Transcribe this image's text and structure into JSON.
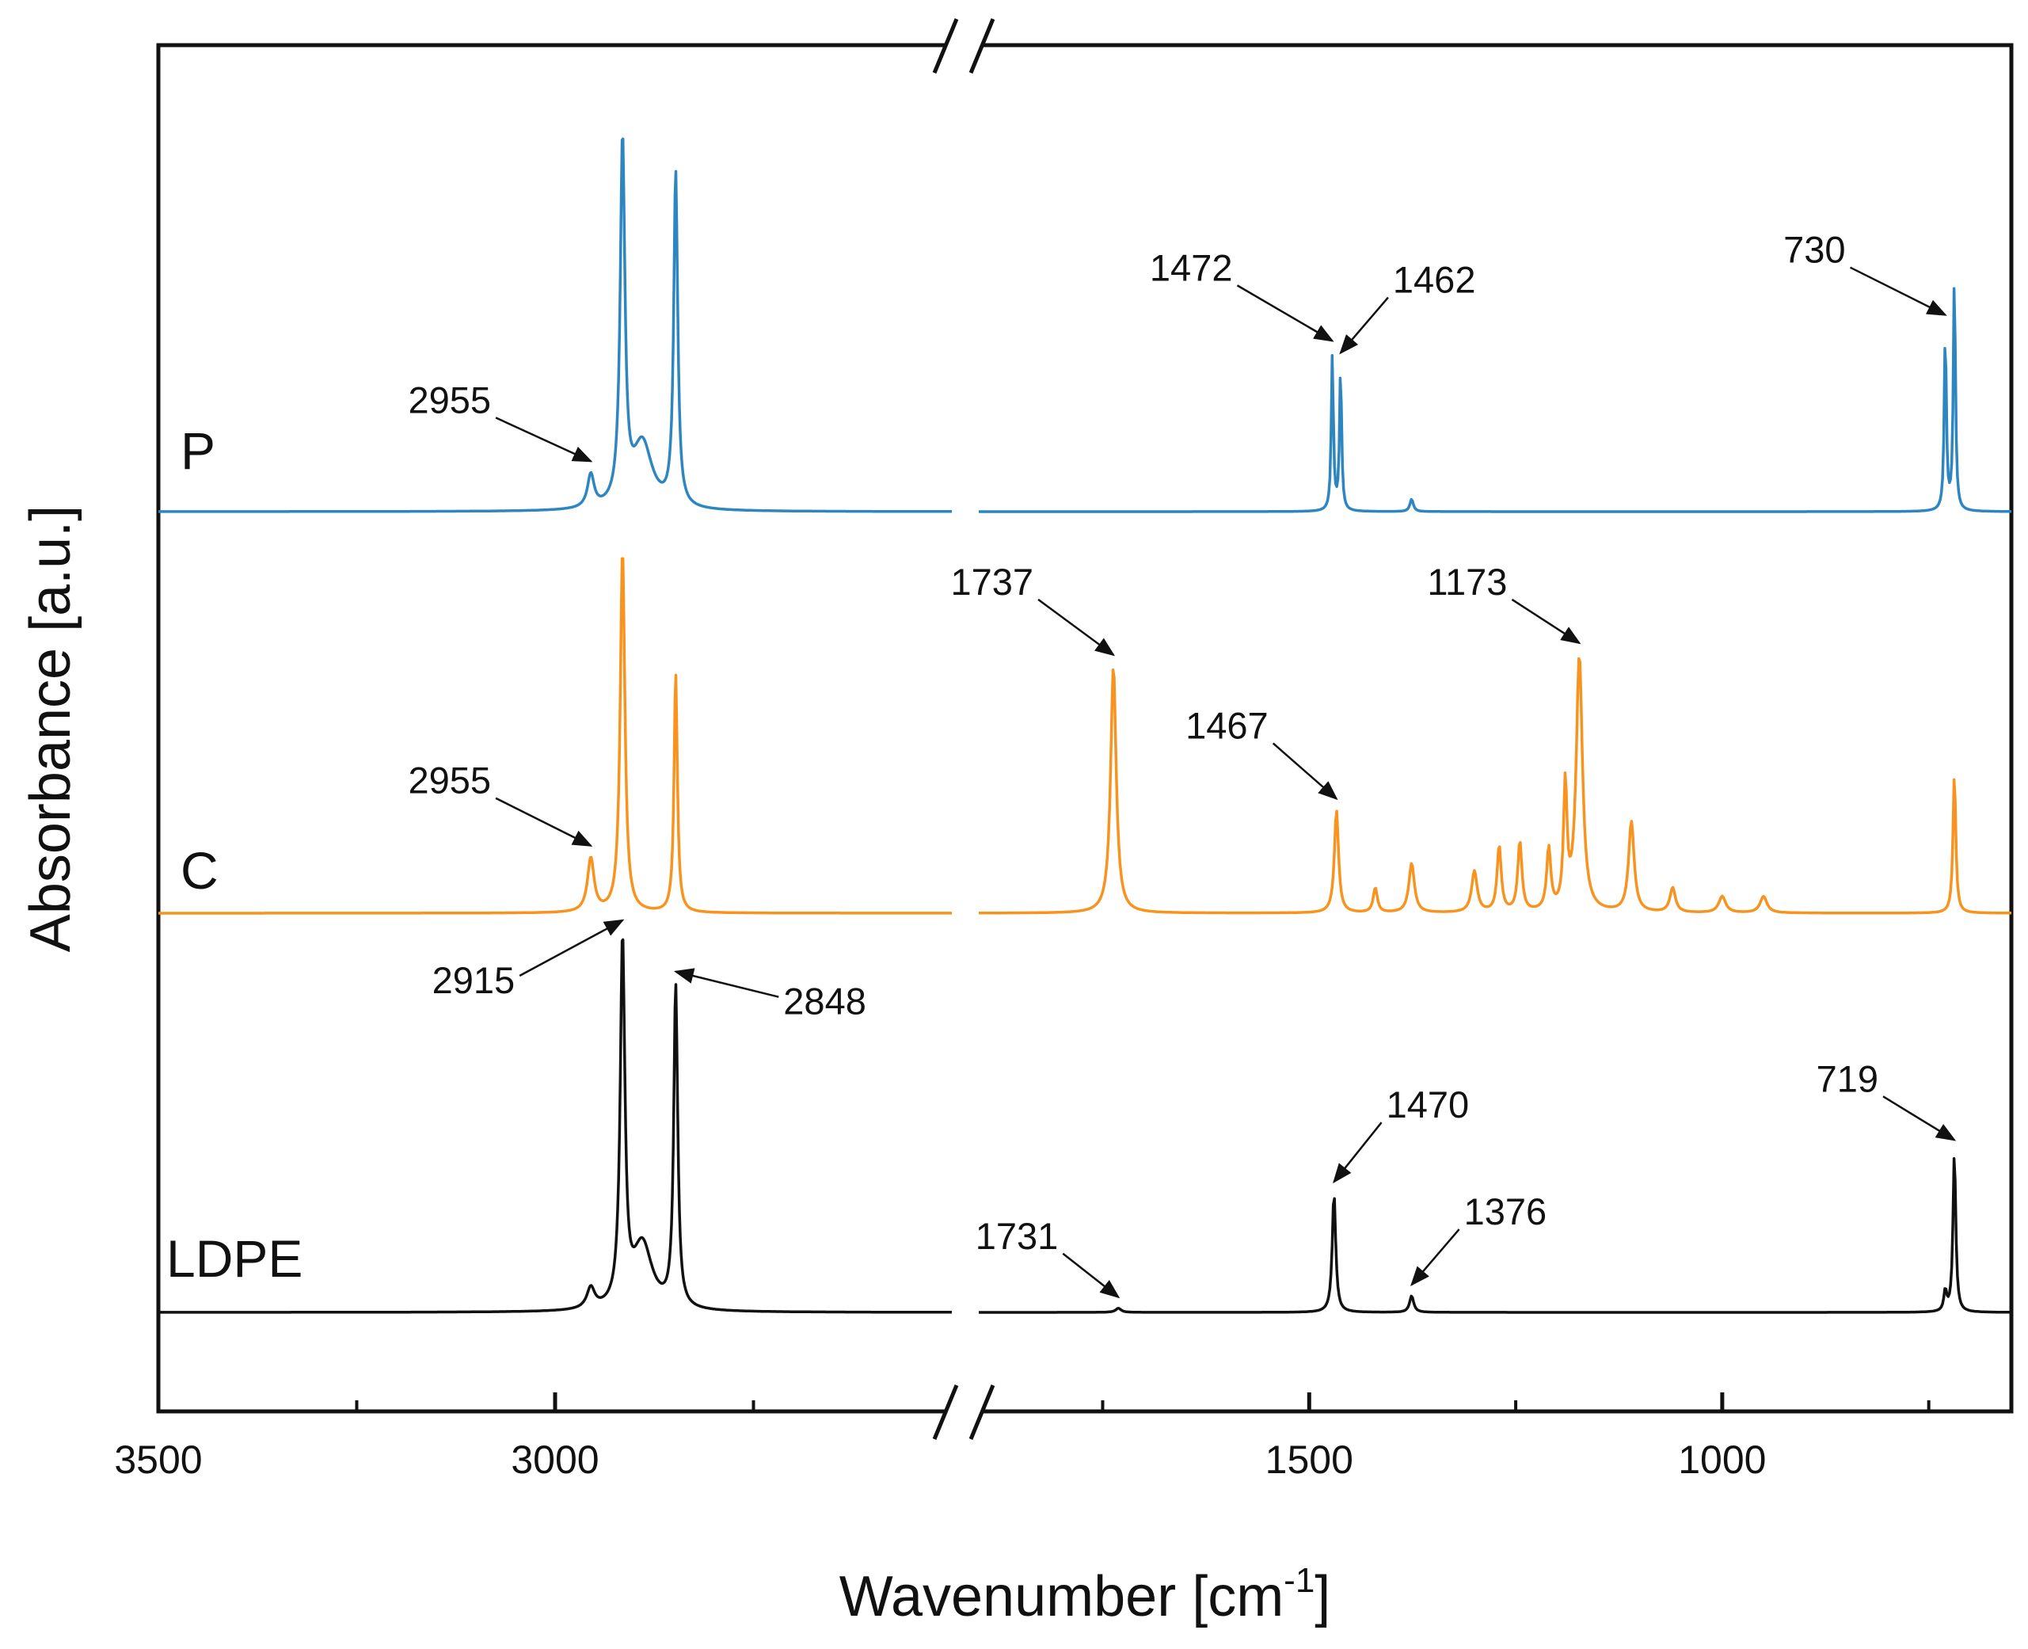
{
  "chart_data": {
    "type": "line",
    "title": "",
    "xlabel": "Wavenumber [cm",
    "xlabel_superscript": "-1",
    "xlabel_suffix": "]",
    "ylabel": "Absorbance [a.u.]",
    "x_reversed": true,
    "axis_break": {
      "between": [
        2500,
        1900
      ]
    },
    "xlim": [
      3500,
      650
    ],
    "x_ticks_major": [
      3500,
      3000,
      1500,
      1000
    ],
    "x_ticks_minor": [
      3250,
      2750,
      1750,
      1250,
      750
    ],
    "x_tick_labels": [
      "3500",
      "3000",
      "1500",
      "1000"
    ],
    "grid": false,
    "series": [
      {
        "name": "P",
        "color": "#2e86c1",
        "baseline": 0.0,
        "peaks": [
          {
            "x": 2955,
            "height": 0.08,
            "width": 10
          },
          {
            "x": 2915,
            "height": 0.88,
            "width": 7
          },
          {
            "x": 2890,
            "height": 0.16,
            "width": 30
          },
          {
            "x": 2848,
            "height": 0.81,
            "width": 6
          },
          {
            "x": 1472,
            "height": 0.38,
            "width": 3
          },
          {
            "x": 1462,
            "height": 0.35,
            "width": 3
          },
          {
            "x": 1376,
            "height": 0.03,
            "width": 5
          },
          {
            "x": 730,
            "height": 0.44,
            "width": 3
          },
          {
            "x": 719,
            "height": 0.58,
            "width": 3
          }
        ],
        "annotations": [
          {
            "label": "2955",
            "x": 2955
          },
          {
            "label": "1472",
            "x": 1472
          },
          {
            "label": "1462",
            "x": 1462
          },
          {
            "label": "730",
            "x": 730
          }
        ]
      },
      {
        "name": "C",
        "color": "#f7931e",
        "baseline": 0.0,
        "peaks": [
          {
            "x": 2955,
            "height": 0.13,
            "width": 10
          },
          {
            "x": 2915,
            "height": 0.88,
            "width": 7
          },
          {
            "x": 2848,
            "height": 0.58,
            "width": 5
          },
          {
            "x": 1737,
            "height": 0.6,
            "width": 8
          },
          {
            "x": 1467,
            "height": 0.25,
            "width": 6
          },
          {
            "x": 1420,
            "height": 0.06,
            "width": 6
          },
          {
            "x": 1376,
            "height": 0.12,
            "width": 8
          },
          {
            "x": 1300,
            "height": 0.1,
            "width": 8
          },
          {
            "x": 1270,
            "height": 0.16,
            "width": 6
          },
          {
            "x": 1245,
            "height": 0.17,
            "width": 6
          },
          {
            "x": 1210,
            "height": 0.15,
            "width": 6
          },
          {
            "x": 1190,
            "height": 0.3,
            "width": 5
          },
          {
            "x": 1173,
            "height": 0.62,
            "width": 9
          },
          {
            "x": 1110,
            "height": 0.22,
            "width": 8
          },
          {
            "x": 1060,
            "height": 0.06,
            "width": 8
          },
          {
            "x": 1000,
            "height": 0.04,
            "width": 10
          },
          {
            "x": 950,
            "height": 0.04,
            "width": 10
          },
          {
            "x": 719,
            "height": 0.34,
            "width": 4
          }
        ],
        "annotations": [
          {
            "label": "2955",
            "x": 2955
          },
          {
            "label": "1737",
            "x": 1737
          },
          {
            "label": "1467",
            "x": 1467
          },
          {
            "label": "1173",
            "x": 1173
          }
        ]
      },
      {
        "name": "LDPE",
        "color": "#111111",
        "baseline": 0.0,
        "peaks": [
          {
            "x": 2955,
            "height": 0.05,
            "width": 12
          },
          {
            "x": 2915,
            "height": 0.88,
            "width": 7
          },
          {
            "x": 2890,
            "height": 0.16,
            "width": 30
          },
          {
            "x": 2848,
            "height": 0.78,
            "width": 6
          },
          {
            "x": 1731,
            "height": 0.01,
            "width": 8
          },
          {
            "x": 1470,
            "height": 0.29,
            "width": 5
          },
          {
            "x": 1376,
            "height": 0.04,
            "width": 6
          },
          {
            "x": 730,
            "height": 0.05,
            "width": 4
          },
          {
            "x": 719,
            "height": 0.39,
            "width": 4
          }
        ],
        "annotations": [
          {
            "label": "2915",
            "x": 2915
          },
          {
            "label": "2848",
            "x": 2848
          },
          {
            "label": "1731",
            "x": 1731
          },
          {
            "label": "1470",
            "x": 1470
          },
          {
            "label": "1376",
            "x": 1376
          },
          {
            "label": "719",
            "x": 719
          }
        ]
      }
    ]
  }
}
